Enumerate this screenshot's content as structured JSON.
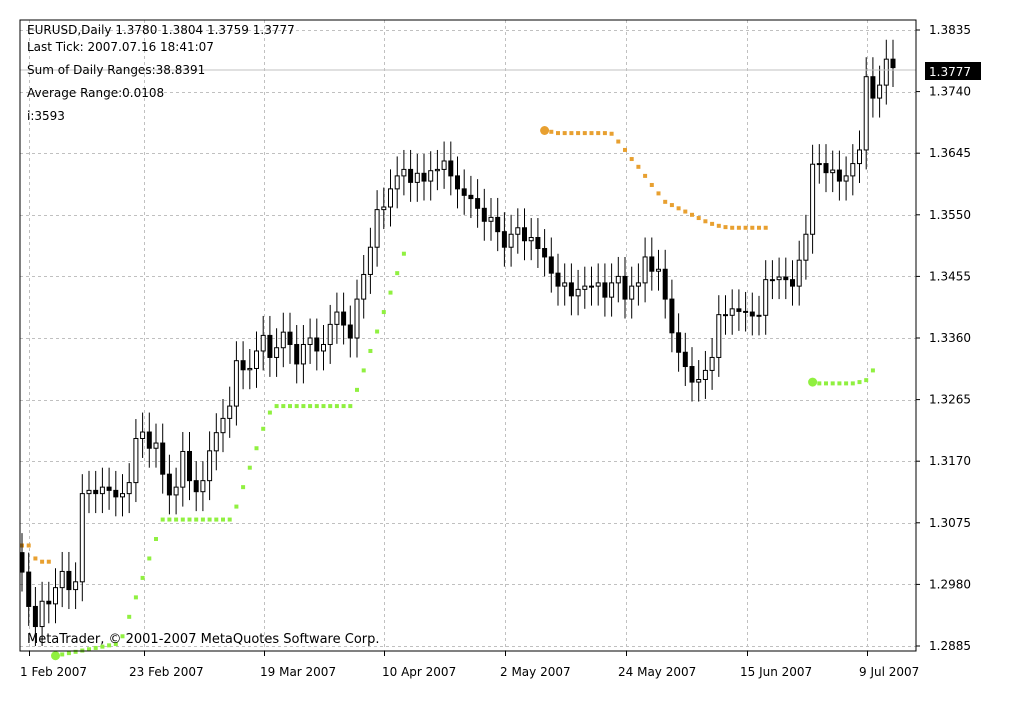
{
  "info": {
    "line1": "EURUSD,Daily  1.3780 1.3804 1.3759 1.3777",
    "line2": "Last Tick: 2007.07.16 18:41:07",
    "line3": "Sum of Daily Ranges:38.8391",
    "line4": "Average Range:0.0108",
    "line5": "i:3593"
  },
  "copyright": "MetaTrader, © 2001-2007 MetaQuotes Software Corp.",
  "colors": {
    "background": "#ffffff",
    "grid": "#c0c0c0",
    "candle": "#000000",
    "upper_dots": "#e8a030",
    "lower_dots": "#90f040",
    "price_tag_bg": "#000000",
    "price_tag_fg": "#ffffff"
  },
  "chart_data": {
    "type": "candlestick",
    "symbol": "EURUSD",
    "timeframe": "Daily",
    "ylim": [
      1.2885,
      1.3835
    ],
    "y_ticks": [
      "1.3835",
      "1.3740",
      "1.3645",
      "1.3550",
      "1.3455",
      "1.3360",
      "1.3265",
      "1.3170",
      "1.3075",
      "1.2980",
      "1.2885"
    ],
    "x_ticks": [
      "1 Feb 2007",
      "23 Feb 2007",
      "19 Mar 2007",
      "10 Apr 2007",
      "2 May 2007",
      "24 May 2007",
      "15 Jun 2007",
      "9 Jul 2007"
    ],
    "current_price": "1.3777",
    "grid": true,
    "closes": [
      1.2999,
      1.2946,
      1.2915,
      1.2954,
      1.295,
      1.2975,
      1.3,
      1.2972,
      1.2984,
      1.312,
      1.3125,
      1.312,
      1.313,
      1.3125,
      1.3115,
      1.312,
      1.3137,
      1.3205,
      1.3215,
      1.319,
      1.3198,
      1.315,
      1.3118,
      1.313,
      1.3185,
      1.314,
      1.3123,
      1.314,
      1.3186,
      1.3214,
      1.3236,
      1.3255,
      1.3325,
      1.3311,
      1.3313,
      1.334,
      1.3364,
      1.333,
      1.3345,
      1.3369,
      1.335,
      1.332,
      1.335,
      1.336,
      1.334,
      1.335,
      1.3381,
      1.34,
      1.338,
      1.336,
      1.342,
      1.3458,
      1.35,
      1.3558,
      1.3562,
      1.359,
      1.361,
      1.362,
      1.36,
      1.3614,
      1.3602,
      1.3618,
      1.362,
      1.3633,
      1.361,
      1.359,
      1.358,
      1.3575,
      1.356,
      1.354,
      1.3546,
      1.3524,
      1.35,
      1.352,
      1.353,
      1.351,
      1.3515,
      1.3498,
      1.3485,
      1.346,
      1.344,
      1.3445,
      1.3425,
      1.3435,
      1.344,
      1.344,
      1.3445,
      1.3423,
      1.3445,
      1.3455,
      1.342,
      1.344,
      1.3445,
      1.3485,
      1.3463,
      1.3466,
      1.342,
      1.3368,
      1.3338,
      1.3316,
      1.3292,
      1.3296,
      1.331,
      1.333,
      1.3396,
      1.3395,
      1.3405,
      1.3401,
      1.34,
      1.3394,
      1.3395,
      1.345,
      1.345,
      1.3454,
      1.345,
      1.344,
      1.348,
      1.352,
      1.3628,
      1.3629,
      1.3615,
      1.3619,
      1.3602,
      1.361,
      1.3629,
      1.365,
      1.3763,
      1.373,
      1.375,
      1.379,
      1.3777
    ],
    "upper_dots": {
      "segment1": [
        1.304,
        1.304,
        1.302,
        1.3015,
        1.3015
      ],
      "segment2": [
        1.368,
        1.3678,
        1.3676,
        1.3676,
        1.3676,
        1.3676,
        1.3676,
        1.3676,
        1.3676,
        1.3676,
        1.3675,
        1.3663,
        1.365,
        1.3636,
        1.3624,
        1.361,
        1.3596,
        1.3583,
        1.357,
        1.3565,
        1.356,
        1.3555,
        1.355,
        1.3545,
        1.354,
        1.3536,
        1.3533,
        1.3531,
        1.353,
        1.353,
        1.353,
        1.353,
        1.353,
        1.353
      ]
    },
    "lower_dots": {
      "segment1": [
        1.287,
        1.2872,
        1.2874,
        1.2876,
        1.2878,
        1.288,
        1.2882,
        1.2884,
        1.2886,
        1.2888,
        1.29,
        1.293,
        1.296,
        1.299,
        1.302,
        1.305,
        1.308,
        1.308,
        1.308,
        1.308,
        1.308,
        1.308,
        1.308,
        1.308,
        1.308,
        1.308,
        1.308,
        1.31,
        1.313,
        1.316,
        1.319,
        1.322,
        1.3245,
        1.3255,
        1.3255,
        1.3255,
        1.3255,
        1.3255,
        1.3255,
        1.3255,
        1.3255,
        1.3255,
        1.3255,
        1.3255,
        1.3255,
        1.328,
        1.331,
        1.334,
        1.337,
        1.34,
        1.343,
        1.346,
        1.349
      ],
      "segment2": [
        1.3292,
        1.329,
        1.329,
        1.329,
        1.329,
        1.329,
        1.329,
        1.3292,
        1.3295,
        1.331
      ]
    }
  }
}
